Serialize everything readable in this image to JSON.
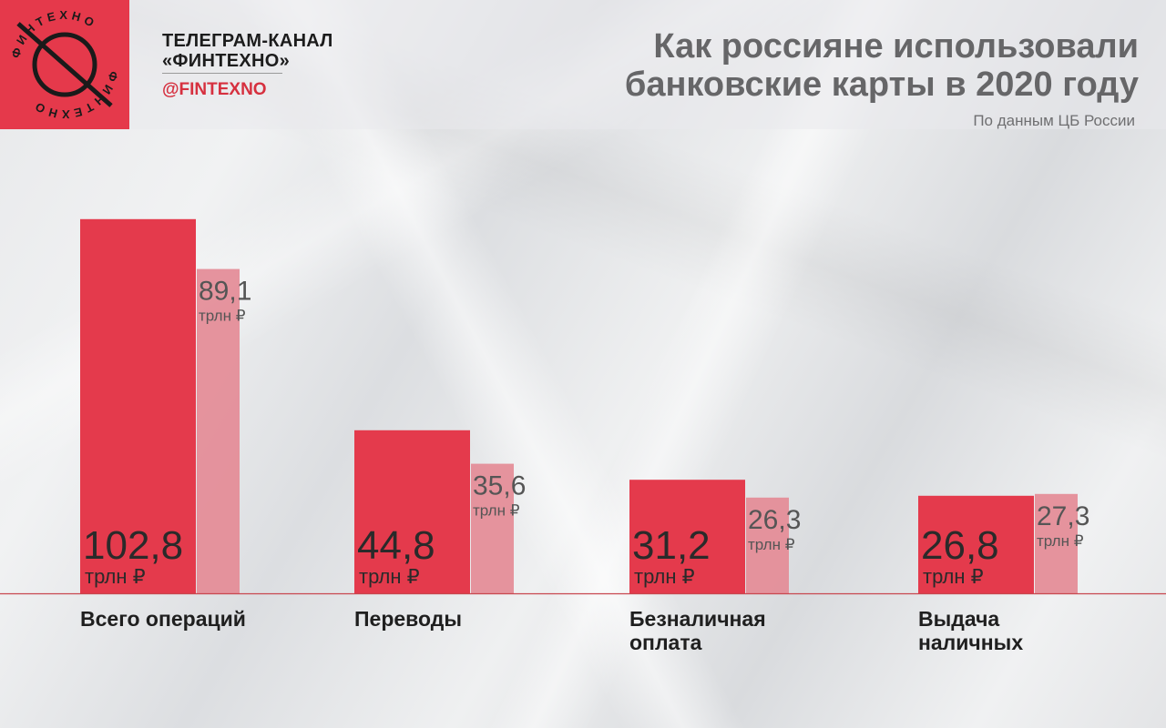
{
  "brand": {
    "logo_text": "ФИНТЕХНО",
    "channel_title": "ТЕЛЕГРАМ-КАНАЛ «ФИНТЕХНО»",
    "handle": "@FINTEXNO",
    "logo_color": "#e5394b"
  },
  "chart_data": {
    "type": "bar",
    "title": "Как россияне использовали банковские карты в 2020 году",
    "subtitle": "По данным ЦБ России",
    "unit": "трлн ₽",
    "categories": [
      "Всего операций",
      "Переводы",
      "Безналичная оплата",
      "Выдача наличных"
    ],
    "series": [
      {
        "values": [
          102.8,
          44.8,
          31.2,
          26.8
        ],
        "labels": [
          "102,8",
          "44,8",
          "31,2",
          "26,8"
        ],
        "color": "#e43a4c"
      },
      {
        "values": [
          89.1,
          35.6,
          26.3,
          27.3
        ],
        "labels": [
          "89,1",
          "35,6",
          "26,3",
          "27,3"
        ],
        "color": "#e48b96"
      }
    ],
    "ylim": [
      0,
      110
    ],
    "grid": false,
    "legend": "none"
  }
}
